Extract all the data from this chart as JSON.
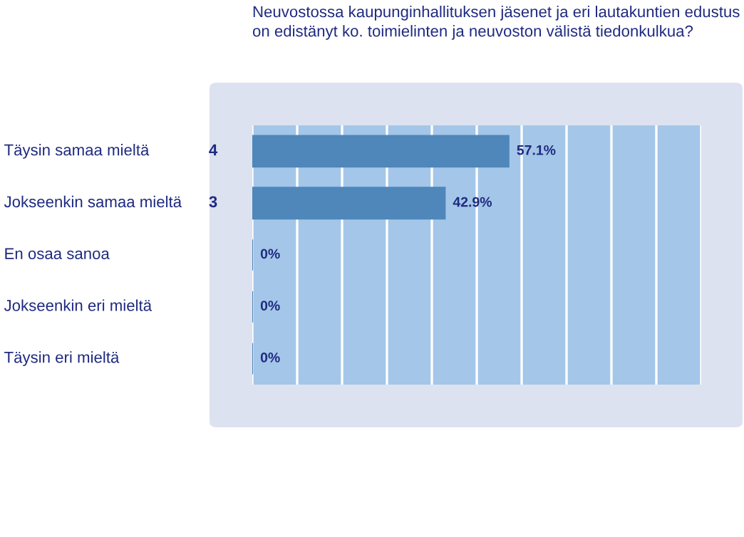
{
  "chart_data": {
    "type": "bar",
    "orientation": "horizontal",
    "title": "Neuvostossa kaupunginhallituksen jäsenet ja eri lautakuntien edustus on edistänyt ko. toimielinten ja neuvoston välistä tiedonkulkua?",
    "categories": [
      "Täysin samaa mieltä",
      "Jokseenkin samaa mieltä",
      "En osaa sanoa",
      "Jokseenkin eri mieltä",
      "Täysin eri mieltä"
    ],
    "values": [
      57.1,
      42.9,
      0,
      0,
      0
    ],
    "value_labels": [
      "57.1%",
      "42.9%",
      "0%",
      "0%",
      "0%"
    ],
    "color": "#4f87bb",
    "xlim": [
      0,
      100
    ],
    "xticks": [
      {
        "value": 0,
        "label": null
      },
      {
        "value": 10,
        "label": null
      },
      {
        "value": 20,
        "label": null
      },
      {
        "value": 30,
        "label": null
      },
      {
        "value": 40,
        "label": null
      },
      {
        "value": 50,
        "label": null
      },
      {
        "value": 60,
        "label": null
      },
      {
        "value": 70,
        "label": null
      },
      {
        "value": 80,
        "label": null
      },
      {
        "value": 90,
        "label": null
      },
      {
        "value": 100,
        "label": null
      }
    ],
    "grid": "x",
    "tick_labels": false,
    "annotations": [
      "4",
      "3"
    ]
  }
}
